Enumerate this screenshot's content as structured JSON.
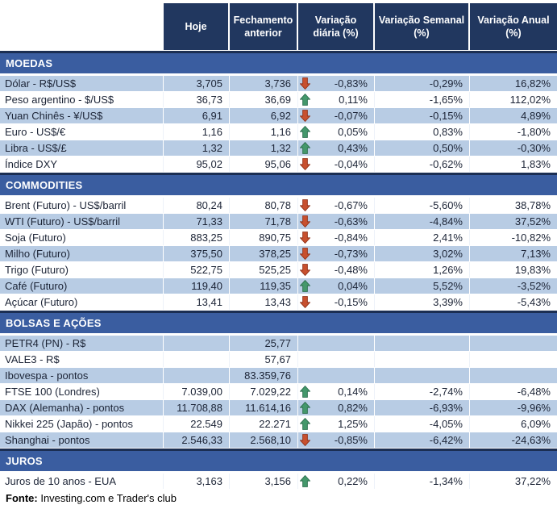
{
  "header": {
    "columns": [
      "Hoje",
      "Fechamento anterior",
      "Variação diária (%)",
      "Variação Semanal (%)",
      "Variação Anual (%)"
    ]
  },
  "sections": [
    {
      "title": "MOEDAS",
      "rows": [
        {
          "label": "Dólar - R$/US$",
          "hoje": "3,705",
          "fechamento": "3,736",
          "arrow": "down",
          "var_diaria": "-0,83%",
          "var_semanal": "-0,29%",
          "var_anual": "16,82%",
          "shade": "blue"
        },
        {
          "label": "Peso argentino - $/US$",
          "hoje": "36,73",
          "fechamento": "36,69",
          "arrow": "up",
          "var_diaria": "0,11%",
          "var_semanal": "-1,65%",
          "var_anual": "112,02%",
          "shade": "white"
        },
        {
          "label": "Yuan Chinês - ¥/US$",
          "hoje": "6,91",
          "fechamento": "6,92",
          "arrow": "down",
          "var_diaria": "-0,07%",
          "var_semanal": "-0,15%",
          "var_anual": "4,89%",
          "shade": "blue"
        },
        {
          "label": "Euro - US$/€",
          "hoje": "1,16",
          "fechamento": "1,16",
          "arrow": "up",
          "var_diaria": "0,05%",
          "var_semanal": "0,83%",
          "var_anual": "-1,80%",
          "shade": "white"
        },
        {
          "label": "Libra - US$/£",
          "hoje": "1,32",
          "fechamento": "1,32",
          "arrow": "up",
          "var_diaria": "0,43%",
          "var_semanal": "0,50%",
          "var_anual": "-0,30%",
          "shade": "blue"
        },
        {
          "label": "Índice DXY",
          "hoje": "95,02",
          "fechamento": "95,06",
          "arrow": "down",
          "var_diaria": "-0,04%",
          "var_semanal": "-0,62%",
          "var_anual": "1,83%",
          "shade": "white"
        }
      ]
    },
    {
      "title": "COMMODITIES",
      "rows": [
        {
          "label": "Brent (Futuro) - US$/barril",
          "hoje": "80,24",
          "fechamento": "80,78",
          "arrow": "down",
          "var_diaria": "-0,67%",
          "var_semanal": "-5,60%",
          "var_anual": "38,78%",
          "shade": "white"
        },
        {
          "label": "WTI (Futuro) - US$/barril",
          "hoje": "71,33",
          "fechamento": "71,78",
          "arrow": "down",
          "var_diaria": "-0,63%",
          "var_semanal": "-4,84%",
          "var_anual": "37,52%",
          "shade": "blue"
        },
        {
          "label": "Soja (Futuro)",
          "hoje": "883,25",
          "fechamento": "890,75",
          "arrow": "down",
          "var_diaria": "-0,84%",
          "var_semanal": "2,41%",
          "var_anual": "-10,82%",
          "shade": "white"
        },
        {
          "label": "Milho (Futuro)",
          "hoje": "375,50",
          "fechamento": "378,25",
          "arrow": "down",
          "var_diaria": "-0,73%",
          "var_semanal": "3,02%",
          "var_anual": "7,13%",
          "shade": "blue"
        },
        {
          "label": "Trigo (Futuro)",
          "hoje": "522,75",
          "fechamento": "525,25",
          "arrow": "down",
          "var_diaria": "-0,48%",
          "var_semanal": "1,26%",
          "var_anual": "19,83%",
          "shade": "white"
        },
        {
          "label": "Café (Futuro)",
          "hoje": "119,40",
          "fechamento": "119,35",
          "arrow": "up",
          "var_diaria": "0,04%",
          "var_semanal": "5,52%",
          "var_anual": "-3,52%",
          "shade": "blue"
        },
        {
          "label": "Açúcar (Futuro)",
          "hoje": "13,41",
          "fechamento": "13,43",
          "arrow": "down",
          "var_diaria": "-0,15%",
          "var_semanal": "3,39%",
          "var_anual": "-5,43%",
          "shade": "white"
        }
      ]
    },
    {
      "title": "BOLSAS E AÇÕES",
      "rows": [
        {
          "label": "PETR4 (PN) - R$",
          "hoje": "",
          "fechamento": "25,77",
          "arrow": null,
          "var_diaria": "",
          "var_semanal": "",
          "var_anual": "",
          "shade": "blue"
        },
        {
          "label": "VALE3 - R$",
          "hoje": "",
          "fechamento": "57,67",
          "arrow": null,
          "var_diaria": "",
          "var_semanal": "",
          "var_anual": "",
          "shade": "white"
        },
        {
          "label": "Ibovespa - pontos",
          "hoje": "",
          "fechamento": "83.359,76",
          "arrow": null,
          "var_diaria": "",
          "var_semanal": "",
          "var_anual": "",
          "shade": "blue"
        },
        {
          "label": "FTSE 100 (Londres)",
          "hoje": "7.039,00",
          "fechamento": "7.029,22",
          "arrow": "up",
          "var_diaria": "0,14%",
          "var_semanal": "-2,74%",
          "var_anual": "-6,48%",
          "shade": "white"
        },
        {
          "label": "DAX (Alemanha) - pontos",
          "hoje": "11.708,88",
          "fechamento": "11.614,16",
          "arrow": "up",
          "var_diaria": "0,82%",
          "var_semanal": "-6,93%",
          "var_anual": "-9,96%",
          "shade": "blue"
        },
        {
          "label": "Nikkei 225 (Japão) - pontos",
          "hoje": "22.549",
          "fechamento": "22.271",
          "arrow": "up",
          "var_diaria": "1,25%",
          "var_semanal": "-4,05%",
          "var_anual": "6,09%",
          "shade": "white"
        },
        {
          "label": "Shanghai - pontos",
          "hoje": "2.546,33",
          "fechamento": "2.568,10",
          "arrow": "down",
          "var_diaria": "-0,85%",
          "var_semanal": "-6,42%",
          "var_anual": "-24,63%",
          "shade": "blue"
        }
      ]
    },
    {
      "title": "JUROS",
      "rows": [
        {
          "label": "Juros de 10 anos - EUA",
          "hoje": "3,163",
          "fechamento": "3,156",
          "arrow": "up",
          "var_diaria": "0,22%",
          "var_semanal": "-1,34%",
          "var_anual": "37,22%",
          "shade": "white"
        }
      ]
    }
  ],
  "footer": {
    "source_label": "Fonte:",
    "source_text": " Investing.com e Trader's club"
  },
  "icons": {
    "up": "up-arrow-icon",
    "down": "down-arrow-icon"
  },
  "colors": {
    "header_navy": "#21375F",
    "section_blue": "#3A5DA0",
    "row_blue": "#B8CCE4",
    "rule_navy": "#1B2E52",
    "up_green": "#44986B",
    "down_red": "#C8502E"
  }
}
